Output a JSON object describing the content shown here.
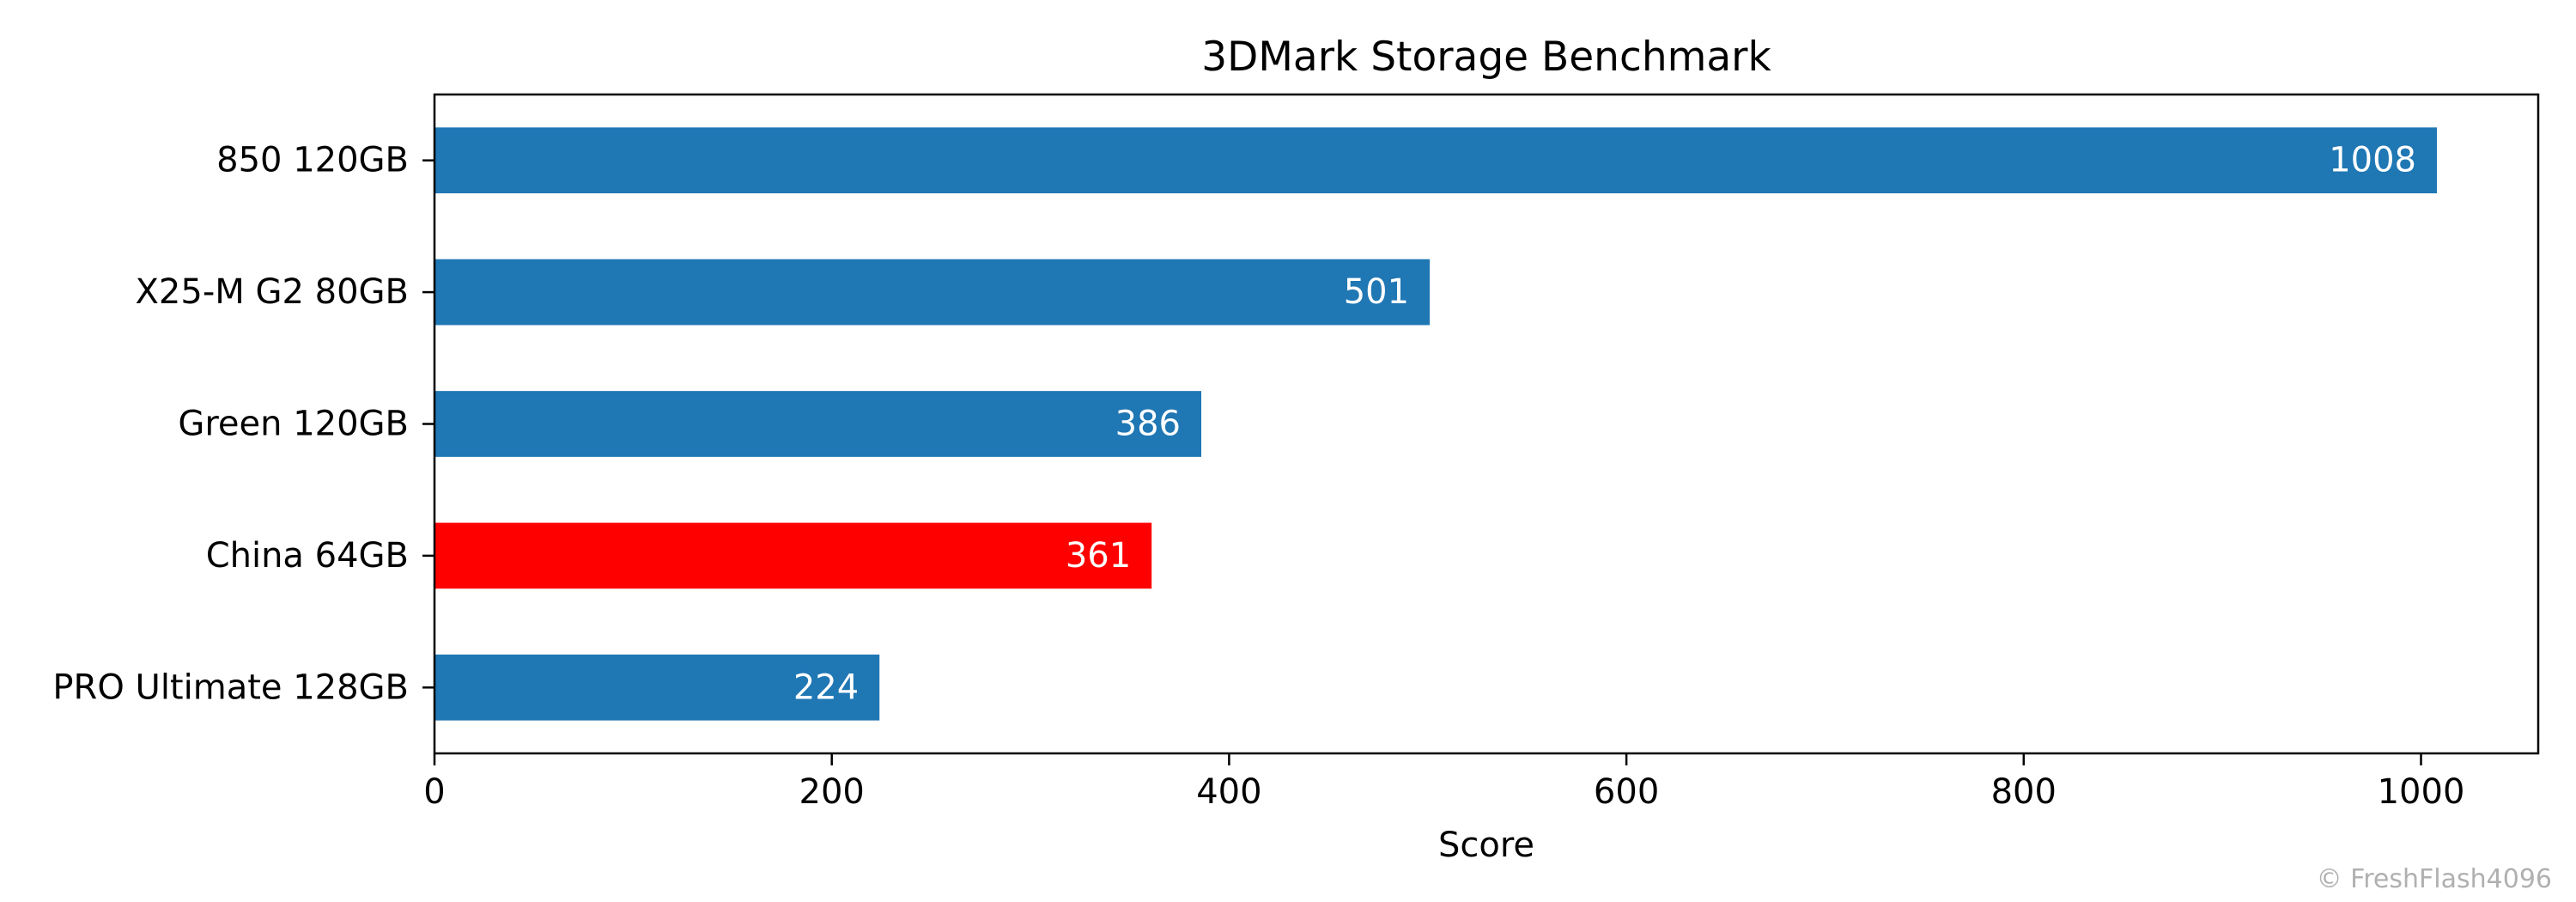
{
  "chart_data": {
    "type": "bar",
    "orientation": "horizontal",
    "title": "3DMark Storage Benchmark",
    "xlabel": "Score",
    "ylabel": "",
    "categories": [
      "850 120GB",
      "X25-M G2 80GB",
      "Green 120GB",
      "China 64GB",
      "PRO Ultimate 128GB"
    ],
    "values": [
      1008,
      501,
      386,
      361,
      224
    ],
    "bar_colors": [
      "#1f77b4",
      "#1f77b4",
      "#1f77b4",
      "#ff0000",
      "#1f77b4"
    ],
    "data_labels": [
      "1008",
      "501",
      "386",
      "361",
      "224"
    ],
    "xlim": [
      0,
      1059
    ],
    "xticks": [
      0,
      200,
      400,
      600,
      800,
      1000
    ],
    "xtick_labels": [
      "0",
      "200",
      "400",
      "600",
      "800",
      "1000"
    ],
    "grid": false,
    "legend": "none"
  },
  "watermark": "© FreshFlash4096"
}
